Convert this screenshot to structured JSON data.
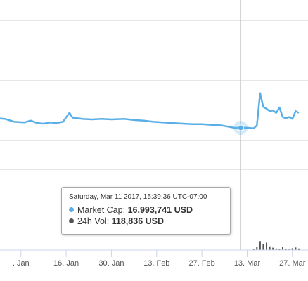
{
  "colors": {
    "market_cap": "#5aaee8",
    "volume": "#555555",
    "grid": "#e6e6e6",
    "crosshair": "#c8c8c8"
  },
  "tooltip": {
    "date": "Saturday, Mar 11 2017, 15:39:36 UTC-07:00",
    "market_cap_label": "Market Cap:",
    "market_cap_value": "16,993,741 USD",
    "volume_label": "24h Vol:",
    "volume_value": "118,836 USD"
  },
  "chart_data": {
    "type": "line",
    "x_axis_ticks": [
      ". Jan",
      "16. Jan",
      "30. Jan",
      "13. Feb",
      "27. Feb",
      "13. Mar",
      "27. Mar"
    ],
    "x_axis_tick_dates": [
      "2017-01-02",
      "2017-01-16",
      "2017-01-30",
      "2017-02-13",
      "2017-02-27",
      "2017-03-13",
      "2017-03-27"
    ],
    "x_range": [
      "2016-12-25",
      "2017-03-29"
    ],
    "y_range_usd": [
      0,
      42000000
    ],
    "grid": true,
    "crosshair_date": "2017-03-11",
    "series": [
      {
        "name": "Market Cap",
        "unit": "USD",
        "points": [
          [
            "2016-12-25",
            18600000
          ],
          [
            "2016-12-28",
            18500000
          ],
          [
            "2016-12-31",
            18000000
          ],
          [
            "2017-01-03",
            17900000
          ],
          [
            "2017-01-05",
            18200000
          ],
          [
            "2017-01-07",
            17800000
          ],
          [
            "2017-01-09",
            17700000
          ],
          [
            "2017-01-11",
            17900000
          ],
          [
            "2017-01-13",
            17800000
          ],
          [
            "2017-01-15",
            18000000
          ],
          [
            "2017-01-17",
            19500000
          ],
          [
            "2017-01-18",
            18700000
          ],
          [
            "2017-01-21",
            18500000
          ],
          [
            "2017-01-24",
            18400000
          ],
          [
            "2017-01-27",
            18500000
          ],
          [
            "2017-01-30",
            18400000
          ],
          [
            "2017-02-03",
            18500000
          ],
          [
            "2017-02-06",
            18300000
          ],
          [
            "2017-02-09",
            18200000
          ],
          [
            "2017-02-12",
            18000000
          ],
          [
            "2017-02-15",
            17900000
          ],
          [
            "2017-02-18",
            17800000
          ],
          [
            "2017-02-21",
            17700000
          ],
          [
            "2017-02-24",
            17600000
          ],
          [
            "2017-02-27",
            17600000
          ],
          [
            "2017-03-02",
            17500000
          ],
          [
            "2017-03-05",
            17400000
          ],
          [
            "2017-03-07",
            17200000
          ],
          [
            "2017-03-09",
            17000000
          ],
          [
            "2017-03-11",
            16993741
          ],
          [
            "2017-03-13",
            17000000
          ],
          [
            "2017-03-15",
            16900000
          ],
          [
            "2017-03-16",
            17400000
          ],
          [
            "2017-03-17",
            22800000
          ],
          [
            "2017-03-18",
            20500000
          ],
          [
            "2017-03-19",
            20200000
          ],
          [
            "2017-03-20",
            19800000
          ],
          [
            "2017-03-21",
            19900000
          ],
          [
            "2017-03-22",
            19500000
          ],
          [
            "2017-03-23",
            20400000
          ],
          [
            "2017-03-24",
            18800000
          ],
          [
            "2017-03-25",
            18600000
          ],
          [
            "2017-03-26",
            18800000
          ],
          [
            "2017-03-27",
            18500000
          ],
          [
            "2017-03-28",
            19800000
          ],
          [
            "2017-03-29",
            19500000
          ]
        ]
      },
      {
        "name": "24h Vol",
        "unit": "USD",
        "points": [
          [
            "2017-03-14",
            60000
          ],
          [
            "2017-03-15",
            250000
          ],
          [
            "2017-03-16",
            600000
          ],
          [
            "2017-03-17",
            1700000
          ],
          [
            "2017-03-18",
            1100000
          ],
          [
            "2017-03-19",
            1400000
          ],
          [
            "2017-03-20",
            700000
          ],
          [
            "2017-03-21",
            450000
          ],
          [
            "2017-03-22",
            300000
          ],
          [
            "2017-03-23",
            200000
          ],
          [
            "2017-03-24",
            550000
          ],
          [
            "2017-03-25",
            150000
          ],
          [
            "2017-03-26",
            120000
          ],
          [
            "2017-03-27",
            350000
          ],
          [
            "2017-03-28",
            500000
          ],
          [
            "2017-03-29",
            300000
          ]
        ],
        "y_range_usd": [
          0,
          4000000
        ]
      }
    ]
  }
}
